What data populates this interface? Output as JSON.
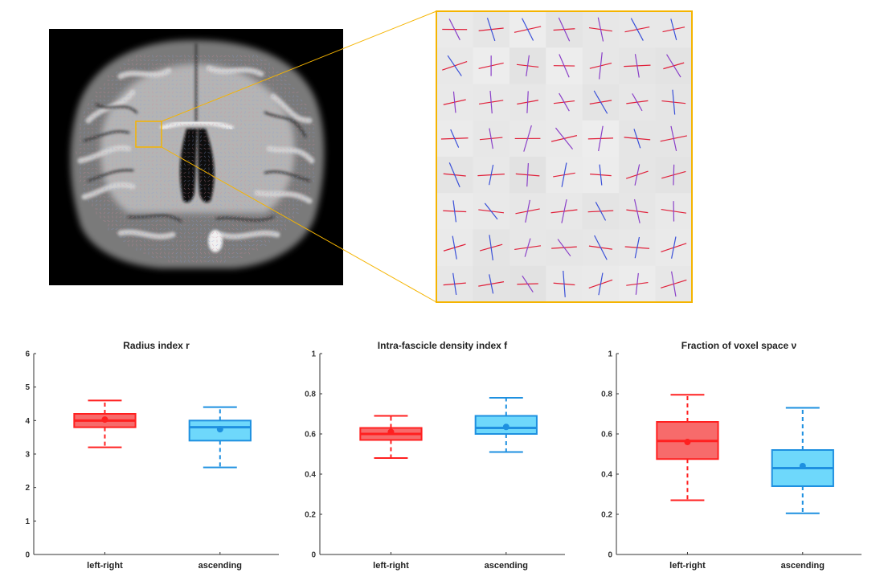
{
  "brain_panel": {
    "description_icon": "mri-coronal-slice",
    "zoom_grid": {
      "rows": 8,
      "cols": 7
    },
    "highlight_color": "#F5B400"
  },
  "chart_data": [
    {
      "type": "box",
      "title": "Radius index r",
      "categories": [
        "left-right",
        "ascending"
      ],
      "ylim": [
        0,
        6
      ],
      "yticks": [
        0,
        1,
        2,
        3,
        4,
        5,
        6
      ],
      "series": [
        {
          "category": "left-right",
          "whisker_low": 3.2,
          "q1": 3.8,
          "median": 4.0,
          "q3": 4.2,
          "whisker_high": 4.6,
          "mean": 4.03,
          "color": "#FF2020"
        },
        {
          "category": "ascending",
          "whisker_low": 2.6,
          "q1": 3.4,
          "median": 3.8,
          "q3": 4.0,
          "whisker_high": 4.4,
          "mean": 3.74,
          "color": "#1E90E0"
        }
      ]
    },
    {
      "type": "box",
      "title": "Intra-fascicle density index f",
      "categories": [
        "left-right",
        "ascending"
      ],
      "ylim": [
        0,
        1
      ],
      "yticks": [
        0,
        0.2,
        0.4,
        0.6,
        0.8,
        1
      ],
      "series": [
        {
          "category": "left-right",
          "whisker_low": 0.48,
          "q1": 0.57,
          "median": 0.6,
          "q3": 0.63,
          "whisker_high": 0.69,
          "mean": 0.61,
          "color": "#FF2020"
        },
        {
          "category": "ascending",
          "whisker_low": 0.51,
          "q1": 0.6,
          "median": 0.63,
          "q3": 0.69,
          "whisker_high": 0.78,
          "mean": 0.635,
          "color": "#1E90E0"
        }
      ]
    },
    {
      "type": "box",
      "title": "Fraction of voxel space ν",
      "categories": [
        "left-right",
        "ascending"
      ],
      "ylim": [
        0,
        1
      ],
      "yticks": [
        0,
        0.2,
        0.4,
        0.6,
        0.8,
        1
      ],
      "series": [
        {
          "category": "left-right",
          "whisker_low": 0.27,
          "q1": 0.475,
          "median": 0.565,
          "q3": 0.66,
          "whisker_high": 0.795,
          "mean": 0.56,
          "color": "#FF2020"
        },
        {
          "category": "ascending",
          "whisker_low": 0.205,
          "q1": 0.34,
          "median": 0.43,
          "q3": 0.52,
          "whisker_high": 0.73,
          "mean": 0.44,
          "color": "#1E90E0"
        }
      ]
    }
  ]
}
